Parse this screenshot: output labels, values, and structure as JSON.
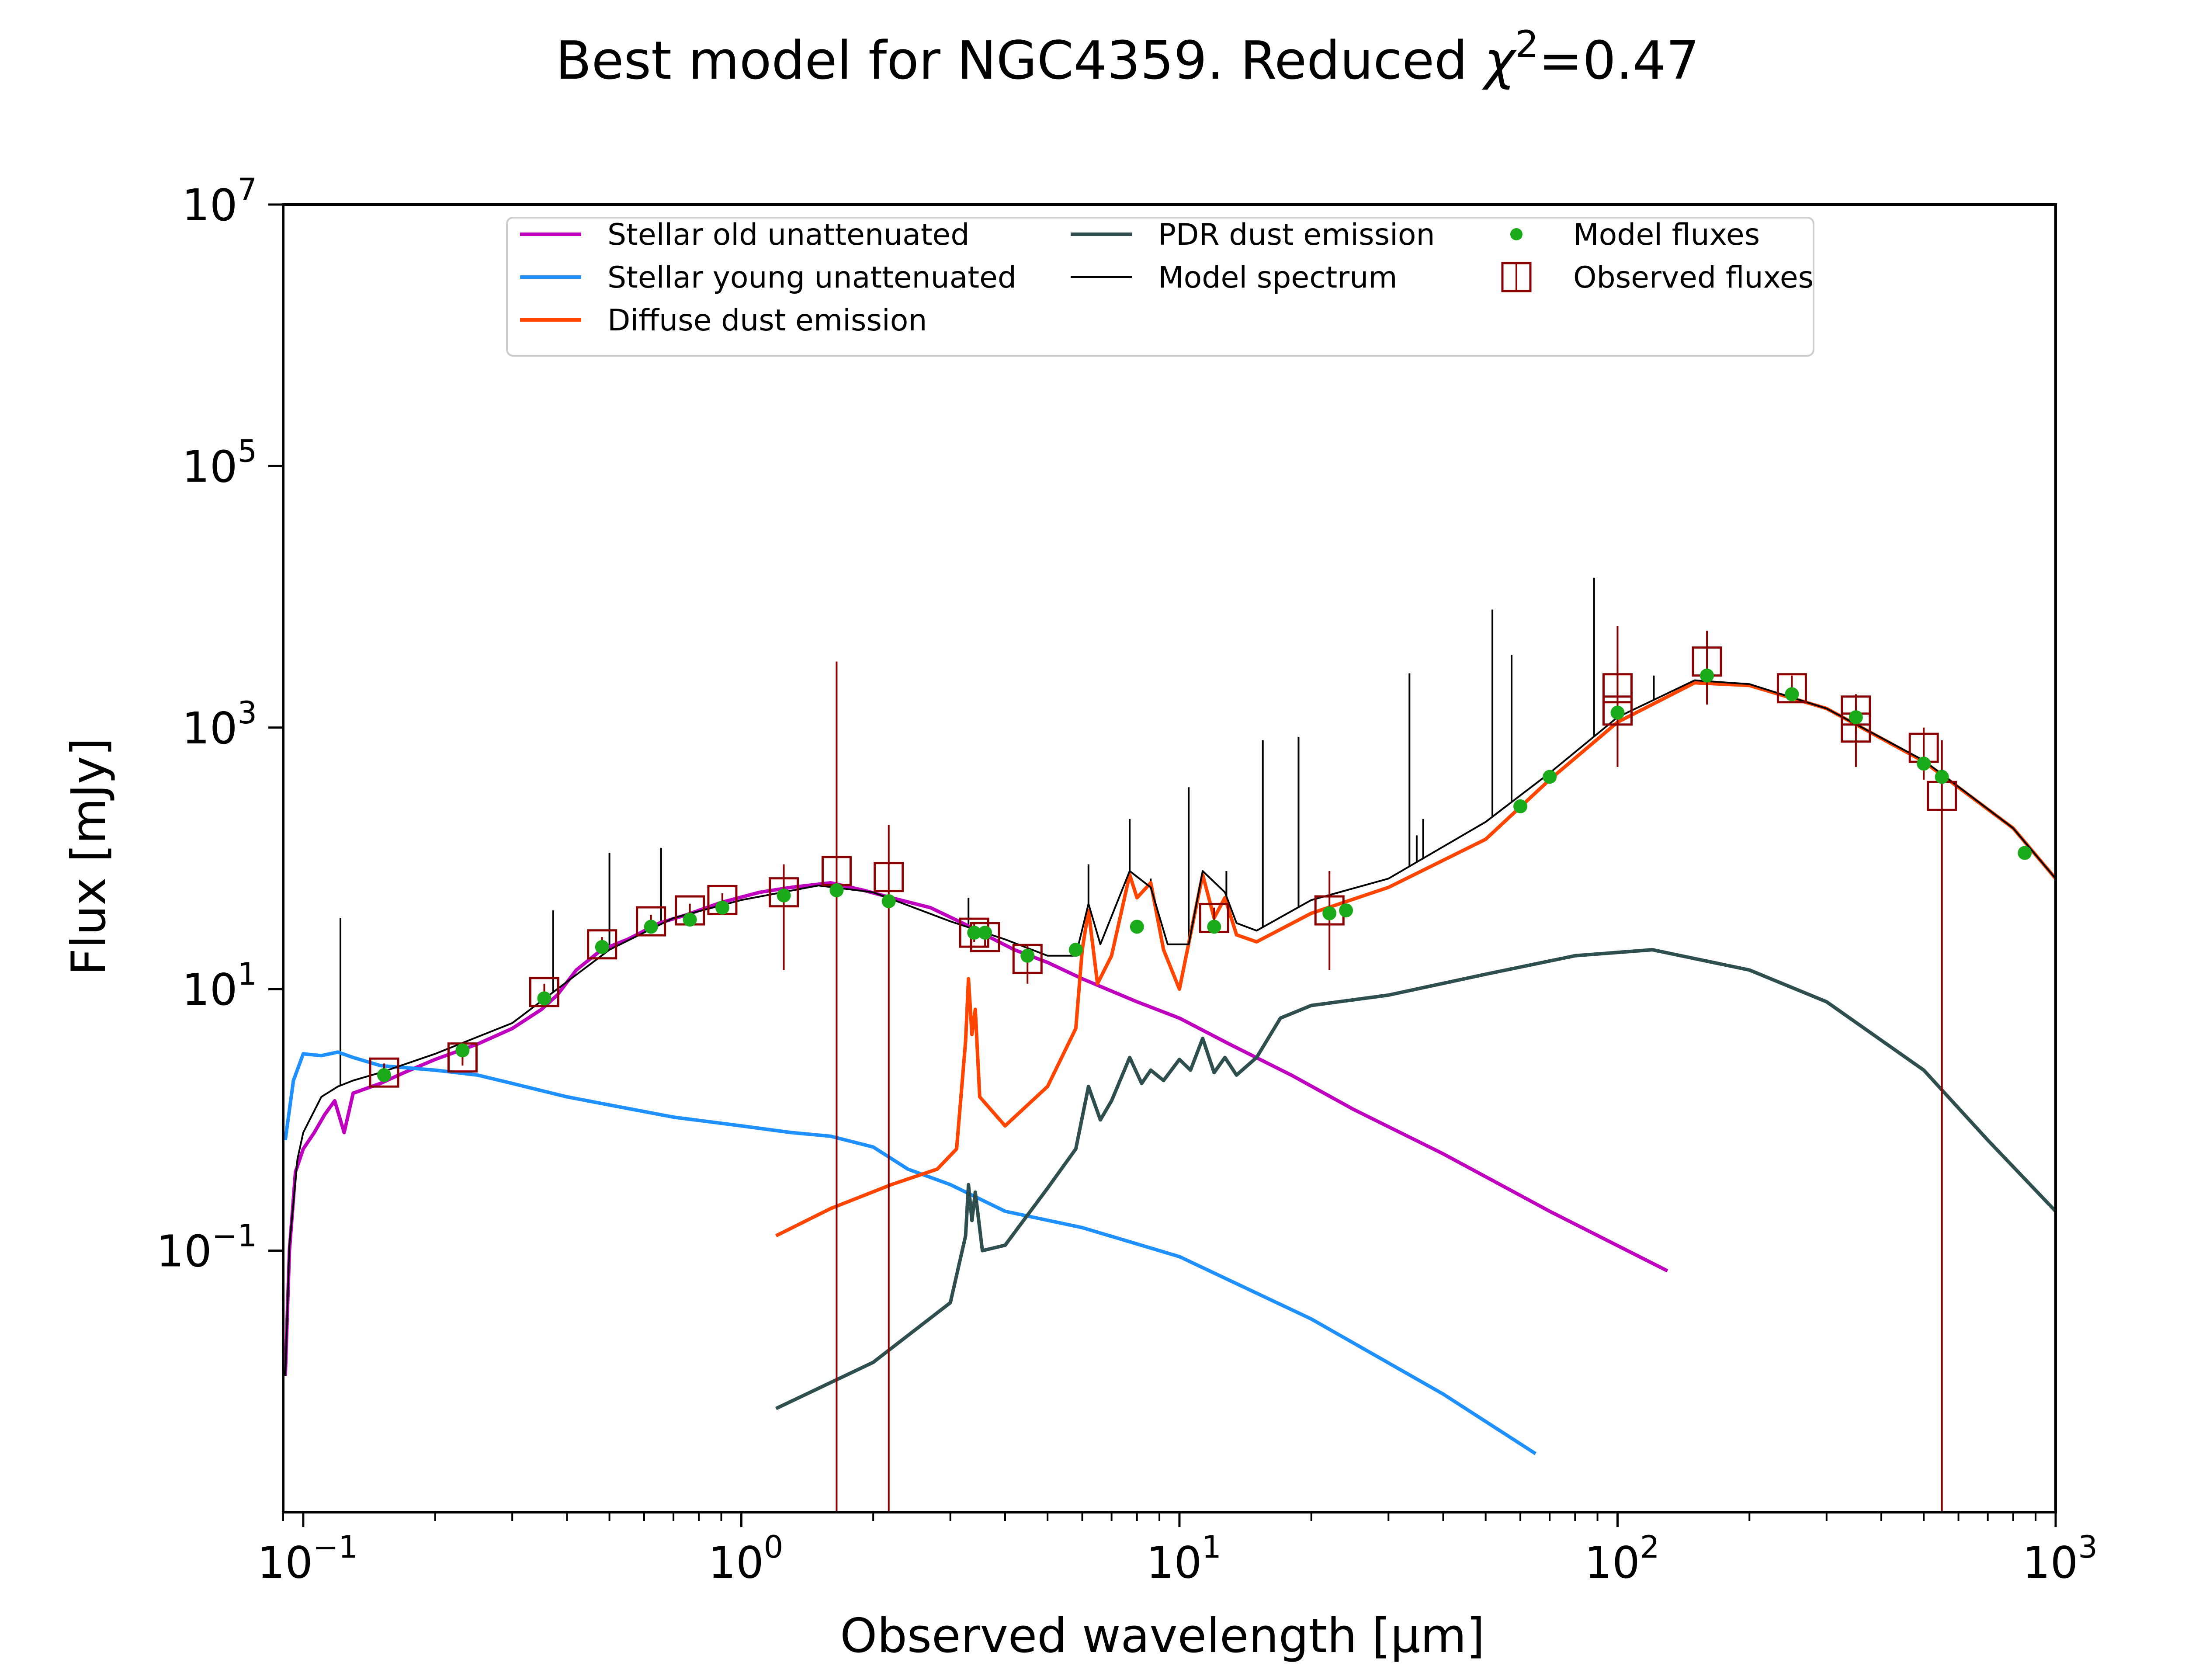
{
  "chart_data": {
    "type": "line",
    "title": {
      "text": "Best model for NGC4359. Reduced ",
      "chi": "χ",
      "exp": "2",
      "value": "=0.47"
    },
    "xlabel": "Observed wavelength [μm]",
    "ylabel": "Flux [mJy]",
    "xscale": "log",
    "yscale": "log",
    "xlim": [
      0.09,
      1000
    ],
    "ylim": [
      0.001,
      10000000
    ],
    "grid": false,
    "legend_placement": "top-center",
    "x_ticks": [
      {
        "value": 0.1,
        "base": "10",
        "exp": "−1"
      },
      {
        "value": 1,
        "base": "10",
        "exp": "0"
      },
      {
        "value": 10,
        "base": "10",
        "exp": "1"
      },
      {
        "value": 100,
        "base": "10",
        "exp": "2"
      },
      {
        "value": 1000,
        "base": "10",
        "exp": "3"
      }
    ],
    "y_ticks": [
      {
        "value": 0.1,
        "base": "10",
        "exp": "−1"
      },
      {
        "value": 10,
        "base": "10",
        "exp": "1"
      },
      {
        "value": 1000,
        "base": "10",
        "exp": "3"
      },
      {
        "value": 100000,
        "base": "10",
        "exp": "5"
      },
      {
        "value": 10000000,
        "base": "10",
        "exp": "7"
      }
    ],
    "legend": [
      {
        "label": "Stellar old unattenuated",
        "marker": "line",
        "color": "#bf00bf"
      },
      {
        "label": "Stellar young unattenuated",
        "marker": "line",
        "color": "#1e90ff"
      },
      {
        "label": "Diffuse dust emission",
        "marker": "line",
        "color": "#ff4500"
      },
      {
        "label": "PDR dust emission",
        "marker": "line",
        "color": "#2f4f4f"
      },
      {
        "label": "Model spectrum",
        "marker": "thinline",
        "color": "#000000"
      },
      {
        "label": "Model fluxes",
        "marker": "dot",
        "color": "#1aaa1a"
      },
      {
        "label": "Observed fluxes",
        "marker": "square",
        "color": "#8b0000"
      }
    ],
    "series": [
      {
        "name": "Stellar old unattenuated",
        "color": "#bf00bf",
        "points": [
          [
            0.091,
            0.011
          ],
          [
            0.093,
            0.1
          ],
          [
            0.096,
            0.4
          ],
          [
            0.1,
            0.6
          ],
          [
            0.106,
            0.8
          ],
          [
            0.112,
            1.1
          ],
          [
            0.118,
            1.4
          ],
          [
            0.124,
            0.8
          ],
          [
            0.13,
            1.6
          ],
          [
            0.15,
            1.9
          ],
          [
            0.17,
            2.3
          ],
          [
            0.2,
            2.9
          ],
          [
            0.25,
            3.8
          ],
          [
            0.3,
            5
          ],
          [
            0.35,
            7
          ],
          [
            0.38,
            9
          ],
          [
            0.42,
            14
          ],
          [
            0.48,
            20
          ],
          [
            0.55,
            24
          ],
          [
            0.65,
            32
          ],
          [
            0.75,
            37
          ],
          [
            0.9,
            46
          ],
          [
            1.1,
            55
          ],
          [
            1.3,
            60
          ],
          [
            1.6,
            65
          ],
          [
            1.9,
            57
          ],
          [
            2.2,
            50
          ],
          [
            2.7,
            42
          ],
          [
            3.2,
            32
          ],
          [
            3.6,
            26
          ],
          [
            4.2,
            20
          ],
          [
            5,
            16
          ],
          [
            6,
            12
          ],
          [
            8,
            8
          ],
          [
            10,
            6
          ],
          [
            13,
            3.8
          ],
          [
            18,
            2.2
          ],
          [
            25,
            1.2
          ],
          [
            40,
            0.55
          ],
          [
            70,
            0.2
          ],
          [
            130,
            0.07
          ]
        ]
      },
      {
        "name": "Stellar young unattenuated",
        "color": "#1e90ff",
        "points": [
          [
            0.091,
            0.7
          ],
          [
            0.095,
            2
          ],
          [
            0.1,
            3.2
          ],
          [
            0.11,
            3.1
          ],
          [
            0.12,
            3.3
          ],
          [
            0.13,
            3.0
          ],
          [
            0.15,
            2.6
          ],
          [
            0.2,
            2.4
          ],
          [
            0.25,
            2.2
          ],
          [
            0.3,
            1.9
          ],
          [
            0.4,
            1.5
          ],
          [
            0.5,
            1.3
          ],
          [
            0.7,
            1.05
          ],
          [
            1,
            0.9
          ],
          [
            1.3,
            0.8
          ],
          [
            1.6,
            0.75
          ],
          [
            2,
            0.62
          ],
          [
            2.4,
            0.42
          ],
          [
            3,
            0.32
          ],
          [
            4,
            0.2
          ],
          [
            6,
            0.15
          ],
          [
            10,
            0.09
          ],
          [
            20,
            0.03
          ],
          [
            40,
            0.008
          ],
          [
            65,
            0.0028
          ]
        ]
      },
      {
        "name": "Diffuse dust emission",
        "color": "#ff4500",
        "points": [
          [
            1.2,
            0.13
          ],
          [
            1.6,
            0.21
          ],
          [
            2.2,
            0.32
          ],
          [
            2.8,
            0.42
          ],
          [
            3.1,
            0.6
          ],
          [
            3.25,
            4
          ],
          [
            3.3,
            12
          ],
          [
            3.36,
            4.5
          ],
          [
            3.42,
            7
          ],
          [
            3.5,
            1.5
          ],
          [
            4,
            0.9
          ],
          [
            5,
            1.8
          ],
          [
            5.8,
            5
          ],
          [
            6.0,
            20
          ],
          [
            6.2,
            40
          ],
          [
            6.5,
            11
          ],
          [
            7.0,
            18
          ],
          [
            7.7,
            75
          ],
          [
            8.0,
            50
          ],
          [
            8.6,
            65
          ],
          [
            9.2,
            20
          ],
          [
            10,
            10
          ],
          [
            11.3,
            75
          ],
          [
            12,
            35
          ],
          [
            12.7,
            50
          ],
          [
            13.5,
            26
          ],
          [
            15,
            23
          ],
          [
            20,
            38
          ],
          [
            30,
            60
          ],
          [
            50,
            140
          ],
          [
            70,
            400
          ],
          [
            100,
            1100
          ],
          [
            150,
            2200
          ],
          [
            200,
            2100
          ],
          [
            300,
            1400
          ],
          [
            500,
            550
          ],
          [
            800,
            170
          ],
          [
            1000,
            70
          ]
        ]
      },
      {
        "name": "PDR dust emission",
        "color": "#2f4f4f",
        "points": [
          [
            1.2,
            0.0062
          ],
          [
            2,
            0.014
          ],
          [
            3,
            0.04
          ],
          [
            3.25,
            0.13
          ],
          [
            3.3,
            0.32
          ],
          [
            3.36,
            0.17
          ],
          [
            3.42,
            0.28
          ],
          [
            3.55,
            0.1
          ],
          [
            4,
            0.11
          ],
          [
            5,
            0.3
          ],
          [
            5.8,
            0.6
          ],
          [
            6.2,
            1.8
          ],
          [
            6.6,
            1.0
          ],
          [
            7.0,
            1.4
          ],
          [
            7.7,
            3.0
          ],
          [
            8.2,
            1.9
          ],
          [
            8.6,
            2.4
          ],
          [
            9.2,
            2.0
          ],
          [
            10,
            2.9
          ],
          [
            10.6,
            2.4
          ],
          [
            11.3,
            4.2
          ],
          [
            12,
            2.3
          ],
          [
            12.7,
            3.0
          ],
          [
            13.5,
            2.2
          ],
          [
            15,
            3.0
          ],
          [
            17,
            6
          ],
          [
            20,
            7.5
          ],
          [
            30,
            9
          ],
          [
            50,
            13
          ],
          [
            80,
            18
          ],
          [
            120,
            20
          ],
          [
            200,
            14
          ],
          [
            300,
            8
          ],
          [
            500,
            2.4
          ],
          [
            700,
            0.7
          ],
          [
            1000,
            0.2
          ]
        ]
      },
      {
        "name": "Model spectrum",
        "color": "#000000",
        "thin": true,
        "points": [
          [
            0.091,
            0.011
          ],
          [
            0.093,
            0.11
          ],
          [
            0.097,
            0.5
          ],
          [
            0.1,
            0.8
          ],
          [
            0.11,
            1.5
          ],
          [
            0.12,
            1.8
          ],
          [
            0.13,
            2.0
          ],
          [
            0.15,
            2.3
          ],
          [
            0.2,
            3.2
          ],
          [
            0.3,
            5.5
          ],
          [
            0.38,
            10
          ],
          [
            0.5,
            20
          ],
          [
            0.7,
            35
          ],
          [
            1,
            48
          ],
          [
            1.5,
            62
          ],
          [
            2,
            55
          ],
          [
            3,
            33
          ],
          [
            4,
            24
          ],
          [
            5,
            18
          ],
          [
            5.8,
            18
          ],
          [
            6.2,
            45
          ],
          [
            6.6,
            22
          ],
          [
            7.7,
            80
          ],
          [
            8.6,
            60
          ],
          [
            9.4,
            22
          ],
          [
            10.5,
            22
          ],
          [
            11.3,
            80
          ],
          [
            12.7,
            55
          ],
          [
            13.5,
            32
          ],
          [
            15,
            28
          ],
          [
            20,
            48
          ],
          [
            30,
            70
          ],
          [
            50,
            190
          ],
          [
            70,
            450
          ],
          [
            100,
            1200
          ],
          [
            150,
            2300
          ],
          [
            200,
            2150
          ],
          [
            300,
            1400
          ],
          [
            500,
            560
          ],
          [
            800,
            170
          ],
          [
            1000,
            70
          ]
        ]
      }
    ],
    "emission_lines": [
      {
        "x": 0.1216,
        "y": 35
      },
      {
        "x": 0.372,
        "y": 40
      },
      {
        "x": 0.5,
        "y": 110
      },
      {
        "x": 0.656,
        "y": 120
      },
      {
        "x": 3.3,
        "y": 50
      },
      {
        "x": 6.2,
        "y": 90
      },
      {
        "x": 7.7,
        "y": 200
      },
      {
        "x": 8.6,
        "y": 70
      },
      {
        "x": 10.5,
        "y": 350
      },
      {
        "x": 12.8,
        "y": 80
      },
      {
        "x": 15.5,
        "y": 800
      },
      {
        "x": 18.7,
        "y": 850
      },
      {
        "x": 33.5,
        "y": 2600
      },
      {
        "x": 34.8,
        "y": 150
      },
      {
        "x": 36,
        "y": 200
      },
      {
        "x": 51.8,
        "y": 8000
      },
      {
        "x": 57.3,
        "y": 3600
      },
      {
        "x": 88.4,
        "y": 14000
      },
      {
        "x": 121,
        "y": 2500
      }
    ],
    "model_fluxes": [
      [
        0.153,
        2.2
      ],
      [
        0.231,
        3.4
      ],
      [
        0.355,
        8.5
      ],
      [
        0.481,
        21
      ],
      [
        0.622,
        30
      ],
      [
        0.763,
        34
      ],
      [
        0.905,
        42
      ],
      [
        1.25,
        52
      ],
      [
        1.65,
        57
      ],
      [
        2.17,
        47
      ],
      [
        3.4,
        27
      ],
      [
        3.6,
        27
      ],
      [
        4.5,
        18
      ],
      [
        5.8,
        20
      ],
      [
        8,
        30
      ],
      [
        12,
        30
      ],
      [
        22,
        38
      ],
      [
        24,
        40
      ],
      [
        60,
        250
      ],
      [
        70,
        420
      ],
      [
        100,
        1300
      ],
      [
        160,
        2500
      ],
      [
        250,
        1800
      ],
      [
        350,
        1200
      ],
      [
        500,
        530
      ],
      [
        550,
        420
      ],
      [
        850,
        110
      ]
    ],
    "observed_fluxes": [
      {
        "x": 0.153,
        "y": 2.3,
        "lo": 2.0,
        "hi": 2.7
      },
      {
        "x": 0.231,
        "y": 3.0,
        "lo": 2.6,
        "hi": 3.5
      },
      {
        "x": 0.355,
        "y": 9.5,
        "lo": 8.0,
        "hi": 11
      },
      {
        "x": 0.481,
        "y": 22,
        "lo": 19,
        "hi": 25
      },
      {
        "x": 0.622,
        "y": 33,
        "lo": 29,
        "hi": 37
      },
      {
        "x": 0.763,
        "y": 40,
        "lo": 35,
        "hi": 45
      },
      {
        "x": 0.905,
        "y": 48,
        "lo": 42,
        "hi": 54
      },
      {
        "x": 1.25,
        "y": 55,
        "lo": 14,
        "hi": 90
      },
      {
        "x": 1.65,
        "y": 80,
        "lo": 0.001,
        "hi": 3200
      },
      {
        "x": 2.17,
        "y": 72,
        "lo": 0.001,
        "hi": 180
      },
      {
        "x": 3.4,
        "y": 27,
        "lo": 23,
        "hi": 32
      },
      {
        "x": 3.6,
        "y": 25,
        "lo": 21,
        "hi": 29
      },
      {
        "x": 4.5,
        "y": 17,
        "lo": 11,
        "hi": 22
      },
      {
        "x": 12,
        "y": 35,
        "lo": 28,
        "hi": 42
      },
      {
        "x": 22,
        "y": 40,
        "lo": 14,
        "hi": 80
      },
      {
        "x": 100,
        "y": 2000,
        "lo": 800,
        "hi": 6000
      },
      {
        "x": 100,
        "y": 1350,
        "lo": 500,
        "hi": 3000
      },
      {
        "x": 160,
        "y": 3200,
        "lo": 1500,
        "hi": 5500
      },
      {
        "x": 250,
        "y": 2000,
        "lo": 1600,
        "hi": 2500
      },
      {
        "x": 350,
        "y": 1350,
        "lo": 900,
        "hi": 1800
      },
      {
        "x": 350,
        "y": 1000,
        "lo": 500,
        "hi": 1500
      },
      {
        "x": 500,
        "y": 700,
        "lo": 400,
        "hi": 1000
      },
      {
        "x": 550,
        "y": 300,
        "lo": 0.001,
        "hi": 800
      }
    ]
  }
}
